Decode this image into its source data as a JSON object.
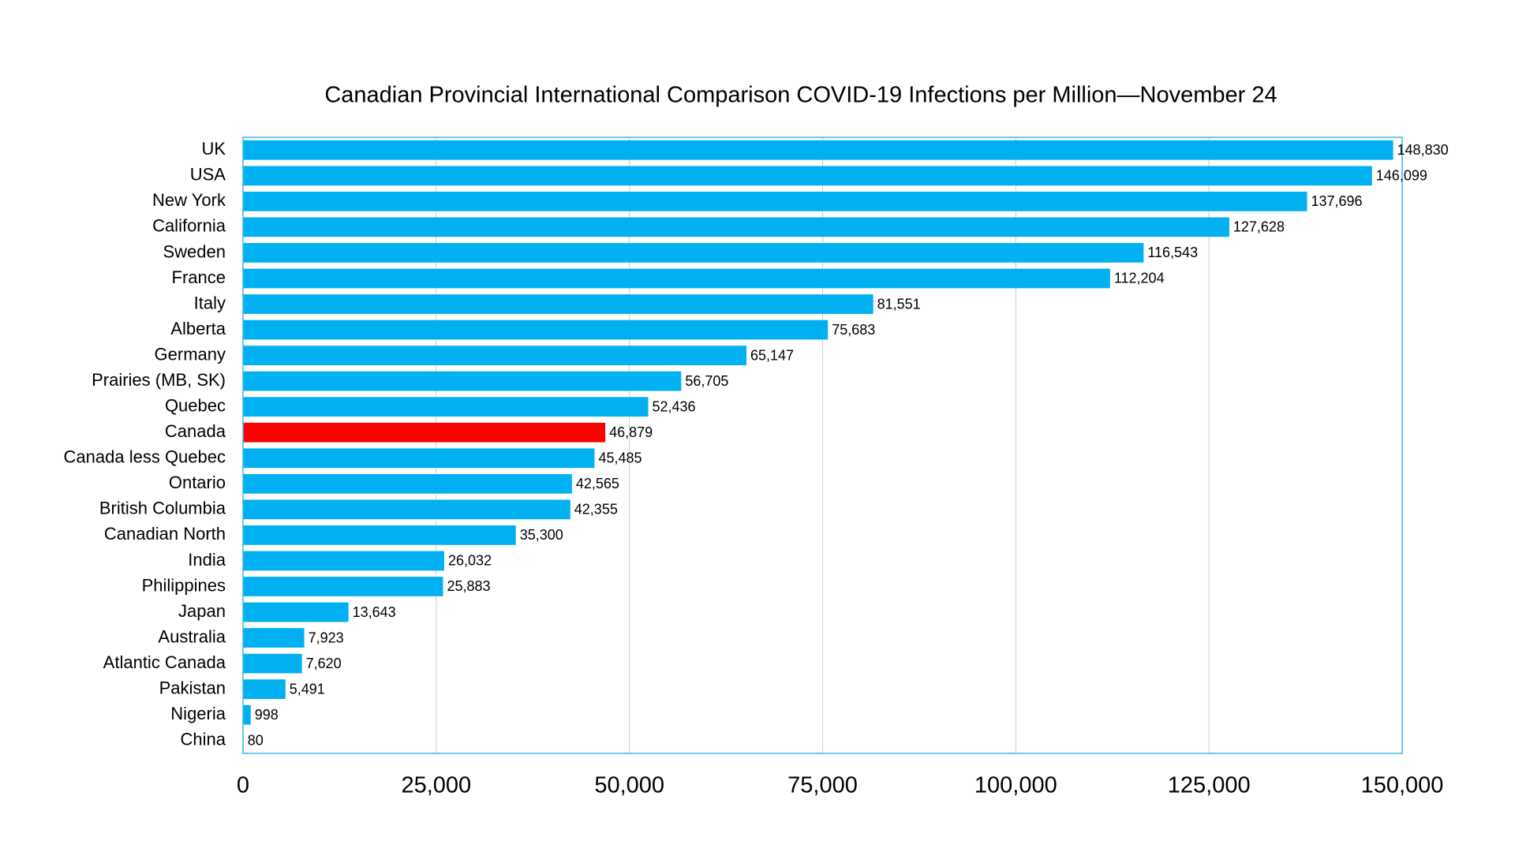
{
  "chart_data": {
    "type": "hbar",
    "title": "Canadian Provincial International Comparison COVID-19 Infections per Million—November 24",
    "categories": [
      "UK",
      "USA",
      "New York",
      "California",
      "Sweden",
      "France",
      "Italy",
      "Alberta",
      "Germany",
      "Prairies (MB, SK)",
      "Quebec",
      "Canada",
      "Canada less Quebec",
      "Ontario",
      "British Columbia",
      "Canadian North",
      "India",
      "Philippines",
      "Japan",
      "Australia",
      "Atlantic Canada",
      "Pakistan",
      "Nigeria",
      "China"
    ],
    "values": [
      148830,
      146099,
      137696,
      127628,
      116543,
      112204,
      81551,
      75683,
      65147,
      56705,
      52436,
      46879,
      45485,
      42565,
      42355,
      35300,
      26032,
      25883,
      13643,
      7923,
      7620,
      5491,
      998,
      80
    ],
    "value_labels": [
      "148,830",
      "146,099",
      "137,696",
      "127,628",
      "116,543",
      "112,204",
      "81,551",
      "75,683",
      "65,147",
      "56,705",
      "52,436",
      "46,879",
      "45,485",
      "42,565",
      "42,355",
      "35,300",
      "26,032",
      "25,883",
      "13,643",
      "7,923",
      "7,620",
      "5,491",
      "998",
      "80"
    ],
    "colors": [
      "#00b0f0",
      "#00b0f0",
      "#00b0f0",
      "#00b0f0",
      "#00b0f0",
      "#00b0f0",
      "#00b0f0",
      "#00b0f0",
      "#00b0f0",
      "#00b0f0",
      "#00b0f0",
      "#ff0000",
      "#00b0f0",
      "#00b0f0",
      "#00b0f0",
      "#00b0f0",
      "#00b0f0",
      "#00b0f0",
      "#00b0f0",
      "#00b0f0",
      "#00b0f0",
      "#00b0f0",
      "#00b0f0",
      "#00b0f0"
    ],
    "xlim": [
      0,
      150000
    ],
    "xticks": [
      0,
      {
        "value": 25000,
        "label": "25,000"
      },
      {
        "value": 50000,
        "label": "50,000"
      },
      {
        "value": 75000,
        "label": "75,000"
      },
      {
        "value": 100000,
        "label": "100,000"
      },
      {
        "value": 125000,
        "label": "125,000"
      },
      {
        "value": 150000,
        "label": "150,000"
      }
    ],
    "grid": true
  }
}
